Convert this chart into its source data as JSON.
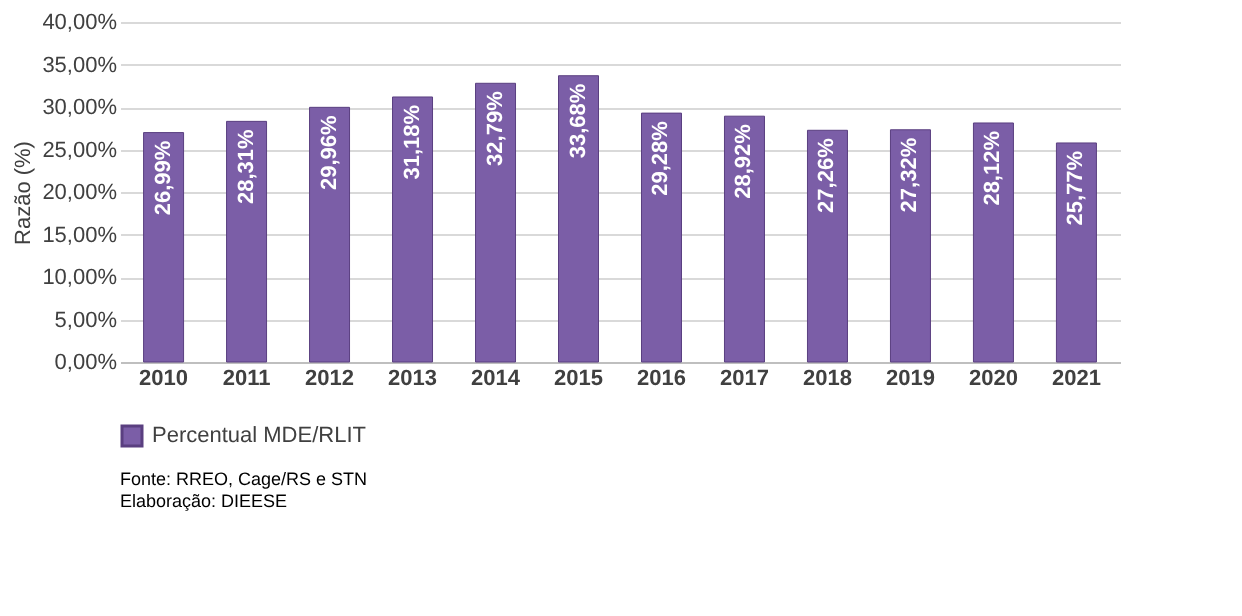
{
  "chart_data": {
    "type": "bar",
    "ylabel": "Razão (%)",
    "categories": [
      "2010",
      "2011",
      "2012",
      "2013",
      "2014",
      "2015",
      "2016",
      "2017",
      "2018",
      "2019",
      "2020",
      "2021"
    ],
    "series": [
      {
        "name": "Percentual MDE/RLIT",
        "color": "#7b5ea7",
        "values": [
          26.99,
          28.31,
          29.96,
          31.18,
          32.79,
          33.68,
          29.28,
          28.92,
          27.26,
          27.32,
          28.12,
          25.77
        ],
        "value_labels": [
          "26,99%",
          "28,31%",
          "29,96%",
          "31,18%",
          "32,79%",
          "33,68%",
          "29,28%",
          "28,92%",
          "27,26%",
          "27,32%",
          "28,12%",
          "25,77%"
        ]
      }
    ],
    "ylim": [
      0,
      40
    ],
    "yticks": [
      {
        "value": 0,
        "label": "0,00%"
      },
      {
        "value": 5,
        "label": "5,00%"
      },
      {
        "value": 10,
        "label": "10,00%"
      },
      {
        "value": 15,
        "label": "15,00%"
      },
      {
        "value": 20,
        "label": "20,00%"
      },
      {
        "value": 25,
        "label": "25,00%"
      },
      {
        "value": 30,
        "label": "30,00%"
      },
      {
        "value": 35,
        "label": "35,00%"
      },
      {
        "value": 40,
        "label": "40,00%"
      }
    ],
    "grid": "y",
    "legend": "bottom",
    "annotations": [
      "Fonte: RREO, Cage/RS e STN",
      "Elaboração: DIEESE"
    ]
  }
}
